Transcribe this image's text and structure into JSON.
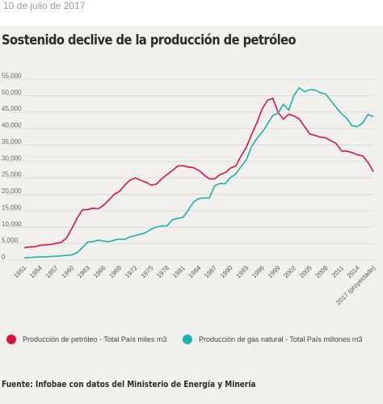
{
  "date": "10 de julio de 2017",
  "chart_data": {
    "type": "line",
    "title": "Sostenido declive de la producción de petróleo",
    "xlabel": "",
    "ylabel": "",
    "ylim": [
      0,
      55000
    ],
    "y_ticks": [
      "55,000",
      "50,000",
      "45,000",
      "40,000",
      "35,000",
      "30,000",
      "25,000",
      "20,000",
      "15,000",
      "10,000",
      "5,000",
      "0"
    ],
    "x_tick_labels": [
      "1951",
      "1954",
      "1957",
      "1960",
      "1963",
      "1966",
      "1969",
      "1972",
      "1975",
      "1978",
      "1981",
      "1984",
      "1987",
      "1990",
      "1993",
      "1996",
      "1999",
      "2002",
      "2005",
      "2008",
      "2011",
      "2014",
      "2017 (proyectado)"
    ],
    "grid": "horizontal",
    "legend_position": "bottom",
    "series": [
      {
        "name": "Producción de petróleo - Total País miles m3",
        "color": "#d9143d",
        "values": [
          3800,
          4000,
          4100,
          4500,
          4700,
          4800,
          5100,
          5400,
          6800,
          9600,
          12800,
          15300,
          15400,
          15800,
          15600,
          16700,
          18300,
          20000,
          20900,
          22800,
          24300,
          25000,
          24300,
          23700,
          22800,
          23100,
          24800,
          26000,
          27200,
          28600,
          28700,
          28300,
          28100,
          27300,
          25900,
          24700,
          24700,
          26000,
          26600,
          28000,
          28600,
          31700,
          34300,
          38200,
          41800,
          46000,
          48600,
          49200,
          44900,
          42800,
          44400,
          43800,
          42900,
          40600,
          38300,
          37900,
          37400,
          37200,
          36300,
          35400,
          33200,
          33100,
          32700,
          32000,
          31700,
          29700,
          26900
        ]
      },
      {
        "name": "Producción de gas natural - Total País millones m3",
        "color": "#18b3ab",
        "values": [
          700,
          800,
          900,
          1000,
          1000,
          1100,
          1200,
          1300,
          1500,
          1600,
          2300,
          3800,
          5500,
          5600,
          6100,
          5800,
          5600,
          6100,
          6400,
          6300,
          7100,
          7500,
          7900,
          8400,
          9400,
          10100,
          10400,
          10400,
          12300,
          12700,
          13000,
          15200,
          17700,
          18700,
          18900,
          18900,
          22600,
          23300,
          23200,
          25200,
          26200,
          28500,
          30500,
          34600,
          37000,
          38900,
          41400,
          44000,
          44700,
          47400,
          45600,
          50100,
          52400,
          51200,
          51800,
          51700,
          50900,
          50500,
          48400,
          46400,
          44500,
          43100,
          40800,
          40600,
          41700,
          44300,
          43600
        ]
      }
    ]
  },
  "legend": [
    {
      "label": "Producción de petróleo - Total País miles m3",
      "color": "#d9143d"
    },
    {
      "label": "Producción de gas natural - Total País millones m3",
      "color": "#18b3ab"
    }
  ],
  "source": "Fuente: Infobae con datos del Ministerio de Energía y Minería"
}
